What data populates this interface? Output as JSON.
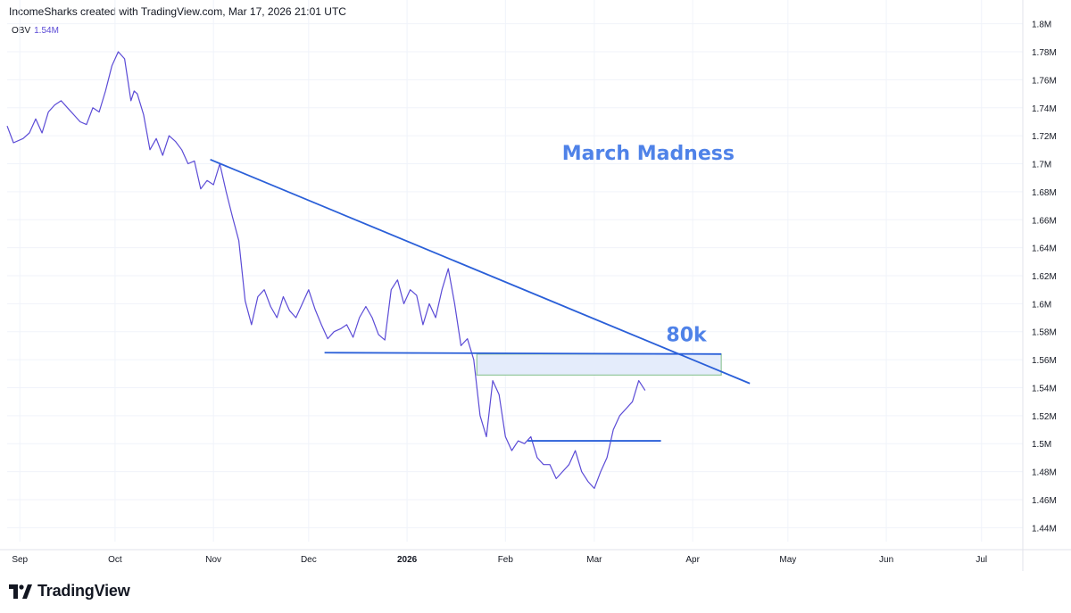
{
  "header": {
    "text": "IncomeSharks created with TradingView.com, Mar 17, 2026 21:01 UTC"
  },
  "indicator": {
    "name": "OBV",
    "value": "1.54M"
  },
  "brand": {
    "name": "TradingView",
    "icon": "tradingview-logo-icon"
  },
  "colors": {
    "series": "#5b4bd6",
    "trendline": "#2a5fd8",
    "annotation": "#4f82e8",
    "zone_fill": "#e4ecfb",
    "zone_border": "#93c79b",
    "grid": "#f0f3fa",
    "axis_text": "#131722"
  },
  "chart_data": {
    "type": "line",
    "series": [
      {
        "name": "OBV",
        "x": [
          "2025-08-28",
          "2025-08-30",
          "2025-09-02",
          "2025-09-04",
          "2025-09-06",
          "2025-09-08",
          "2025-09-10",
          "2025-09-12",
          "2025-09-14",
          "2025-09-16",
          "2025-09-18",
          "2025-09-20",
          "2025-09-22",
          "2025-09-24",
          "2025-09-26",
          "2025-09-28",
          "2025-09-30",
          "2025-10-02",
          "2025-10-04",
          "2025-10-06",
          "2025-10-07",
          "2025-10-08",
          "2025-10-10",
          "2025-10-12",
          "2025-10-14",
          "2025-10-16",
          "2025-10-18",
          "2025-10-20",
          "2025-10-22",
          "2025-10-24",
          "2025-10-26",
          "2025-10-28",
          "2025-10-30",
          "2025-11-01",
          "2025-11-03",
          "2025-11-05",
          "2025-11-07",
          "2025-11-09",
          "2025-11-11",
          "2025-11-13",
          "2025-11-15",
          "2025-11-17",
          "2025-11-19",
          "2025-11-21",
          "2025-11-23",
          "2025-11-25",
          "2025-11-27",
          "2025-11-29",
          "2025-12-01",
          "2025-12-03",
          "2025-12-05",
          "2025-12-07",
          "2025-12-09",
          "2025-12-11",
          "2025-12-13",
          "2025-12-15",
          "2025-12-17",
          "2025-12-19",
          "2025-12-21",
          "2025-12-23",
          "2025-12-25",
          "2025-12-27",
          "2025-12-29",
          "2025-12-31",
          "2026-01-02",
          "2026-01-04",
          "2026-01-06",
          "2026-01-08",
          "2026-01-10",
          "2026-01-12",
          "2026-01-14",
          "2026-01-16",
          "2026-01-18",
          "2026-01-20",
          "2026-01-22",
          "2026-01-24",
          "2026-01-26",
          "2026-01-28",
          "2026-01-30",
          "2026-02-01",
          "2026-02-03",
          "2026-02-05",
          "2026-02-07",
          "2026-02-09",
          "2026-02-11",
          "2026-02-13",
          "2026-02-15",
          "2026-02-17",
          "2026-02-19",
          "2026-02-21",
          "2026-02-23",
          "2026-02-25",
          "2026-02-27",
          "2026-03-01",
          "2026-03-03",
          "2026-03-05",
          "2026-03-07",
          "2026-03-09",
          "2026-03-11",
          "2026-03-13",
          "2026-03-15",
          "2026-03-17"
        ],
        "y": [
          1.727,
          1.715,
          1.718,
          1.722,
          1.732,
          1.722,
          1.737,
          1.742,
          1.745,
          1.74,
          1.735,
          1.73,
          1.728,
          1.74,
          1.737,
          1.752,
          1.77,
          1.78,
          1.775,
          1.745,
          1.752,
          1.75,
          1.735,
          1.71,
          1.718,
          1.706,
          1.72,
          1.716,
          1.71,
          1.7,
          1.702,
          1.682,
          1.688,
          1.685,
          1.7,
          1.68,
          1.662,
          1.645,
          1.602,
          1.585,
          1.605,
          1.61,
          1.598,
          1.59,
          1.605,
          1.595,
          1.59,
          1.6,
          1.61,
          1.596,
          1.585,
          1.575,
          1.58,
          1.582,
          1.585,
          1.576,
          1.59,
          1.598,
          1.59,
          1.578,
          1.574,
          1.61,
          1.617,
          1.6,
          1.61,
          1.606,
          1.585,
          1.6,
          1.59,
          1.61,
          1.625,
          1.6,
          1.57,
          1.575,
          1.56,
          1.52,
          1.505,
          1.545,
          1.535,
          1.505,
          1.495,
          1.502,
          1.5,
          1.505,
          1.49,
          1.485,
          1.485,
          1.475,
          1.48,
          1.485,
          1.495,
          1.48,
          1.473,
          1.468,
          1.48,
          1.49,
          1.51,
          1.52,
          1.525,
          1.53,
          1.545,
          1.538
        ]
      }
    ],
    "xaxis": {
      "ticks": [
        "Sep",
        "Oct",
        "Nov",
        "Dec",
        "2026",
        "Feb",
        "Mar",
        "Apr",
        "May",
        "Jun",
        "Jul"
      ],
      "tick_dates": [
        "2025-09-01",
        "2025-10-01",
        "2025-11-01",
        "2025-12-01",
        "2026-01-01",
        "2026-02-01",
        "2026-03-01",
        "2026-04-01",
        "2026-05-01",
        "2026-06-01",
        "2026-07-01"
      ],
      "bold_ticks": [
        "2026"
      ],
      "range": [
        "2025-08-28",
        "2026-07-14"
      ]
    },
    "yaxis": {
      "ticks": [
        1.44,
        1.46,
        1.48,
        1.5,
        1.52,
        1.54,
        1.56,
        1.58,
        1.6,
        1.62,
        1.64,
        1.66,
        1.68,
        1.7,
        1.72,
        1.74,
        1.76,
        1.78,
        1.8
      ],
      "tick_labels": [
        "1.44M",
        "1.46M",
        "1.48M",
        "1.5M",
        "1.52M",
        "1.54M",
        "1.56M",
        "1.58M",
        "1.6M",
        "1.62M",
        "1.64M",
        "1.66M",
        "1.68M",
        "1.7M",
        "1.72M",
        "1.74M",
        "1.76M",
        "1.78M",
        "1.8M"
      ],
      "range": [
        1.43,
        1.817
      ],
      "position": "right",
      "unit": "M"
    },
    "grid": true,
    "drawings": {
      "descending_trendline": {
        "start": [
          "2025-10-31",
          1.703
        ],
        "end": [
          "2026-04-19",
          1.543
        ]
      },
      "support_line": {
        "start": [
          "2025-12-06",
          1.565
        ],
        "end": [
          "2026-04-10",
          1.564
        ]
      },
      "box": {
        "start": [
          "2026-01-23",
          1.564
        ],
        "end": [
          "2026-04-10",
          1.549
        ]
      },
      "lower_line": {
        "start": [
          "2026-02-08",
          1.502
        ],
        "end": [
          "2026-03-22",
          1.502
        ]
      }
    },
    "annotations": [
      {
        "text": "March Madness",
        "x": "2026-03-18",
        "y": 1.703
      },
      {
        "text": "80k",
        "x": "2026-03-30",
        "y": 1.573
      }
    ]
  }
}
